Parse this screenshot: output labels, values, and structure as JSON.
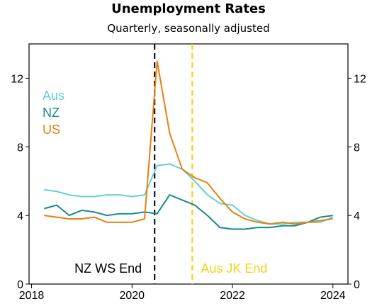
{
  "chart_data": {
    "type": "line",
    "title": "Unemployment Rates",
    "subtitle": "Quarterly, seasonally adjusted",
    "xlim": [
      2017.95,
      2024.3
    ],
    "ylim": [
      0,
      14
    ],
    "x_ticks": [
      2018,
      2020,
      2022,
      2024
    ],
    "y_ticks": [
      0,
      4,
      8,
      12
    ],
    "right_axis_ticks": [
      0,
      4,
      8,
      12
    ],
    "grid": false,
    "legend_position": "top-left",
    "series": [
      {
        "name": "Aus",
        "color": "#66cfd4",
        "x": [
          2018.25,
          2018.5,
          2018.75,
          2019.0,
          2019.25,
          2019.5,
          2019.75,
          2020.0,
          2020.25,
          2020.5,
          2020.75,
          2021.0,
          2021.25,
          2021.5,
          2021.75,
          2022.0,
          2022.25,
          2022.5,
          2022.75,
          2023.0,
          2023.25,
          2023.5,
          2023.75,
          2024.0
        ],
        "values": [
          5.5,
          5.4,
          5.2,
          5.1,
          5.1,
          5.2,
          5.2,
          5.1,
          5.2,
          6.9,
          7.0,
          6.7,
          6.0,
          5.2,
          4.7,
          4.6,
          4.0,
          3.7,
          3.5,
          3.5,
          3.6,
          3.6,
          3.6,
          3.9
        ]
      },
      {
        "name": "NZ",
        "color": "#1a8a8a",
        "x": [
          2018.25,
          2018.5,
          2018.75,
          2019.0,
          2019.25,
          2019.5,
          2019.75,
          2020.0,
          2020.25,
          2020.5,
          2020.75,
          2021.0,
          2021.25,
          2021.5,
          2021.75,
          2022.0,
          2022.25,
          2022.5,
          2022.75,
          2023.0,
          2023.25,
          2023.5,
          2023.75,
          2024.0
        ],
        "values": [
          4.4,
          4.6,
          4.0,
          4.3,
          4.2,
          4.0,
          4.1,
          4.1,
          4.2,
          4.1,
          5.2,
          4.9,
          4.6,
          4.0,
          3.3,
          3.2,
          3.2,
          3.3,
          3.3,
          3.4,
          3.4,
          3.6,
          3.9,
          4.0
        ]
      },
      {
        "name": "US",
        "color": "#e8800f",
        "x": [
          2018.25,
          2018.5,
          2018.75,
          2019.0,
          2019.25,
          2019.5,
          2019.75,
          2020.0,
          2020.25,
          2020.5,
          2020.75,
          2021.0,
          2021.25,
          2021.5,
          2021.75,
          2022.0,
          2022.25,
          2022.5,
          2022.75,
          2023.0,
          2023.25,
          2023.5,
          2023.75,
          2024.0
        ],
        "values": [
          4.0,
          3.9,
          3.8,
          3.8,
          3.9,
          3.6,
          3.6,
          3.6,
          3.8,
          13.0,
          8.8,
          6.7,
          6.2,
          5.9,
          5.0,
          4.2,
          3.8,
          3.6,
          3.5,
          3.6,
          3.5,
          3.6,
          3.7,
          3.8
        ]
      }
    ],
    "annotations": [
      {
        "label": "NZ WS End",
        "x": 2020.45,
        "color": "#000000",
        "line_color": "#111111"
      },
      {
        "label": "Aus JK End",
        "x": 2021.2,
        "color": "#f2d319",
        "line_color": "#f2d319"
      }
    ]
  }
}
